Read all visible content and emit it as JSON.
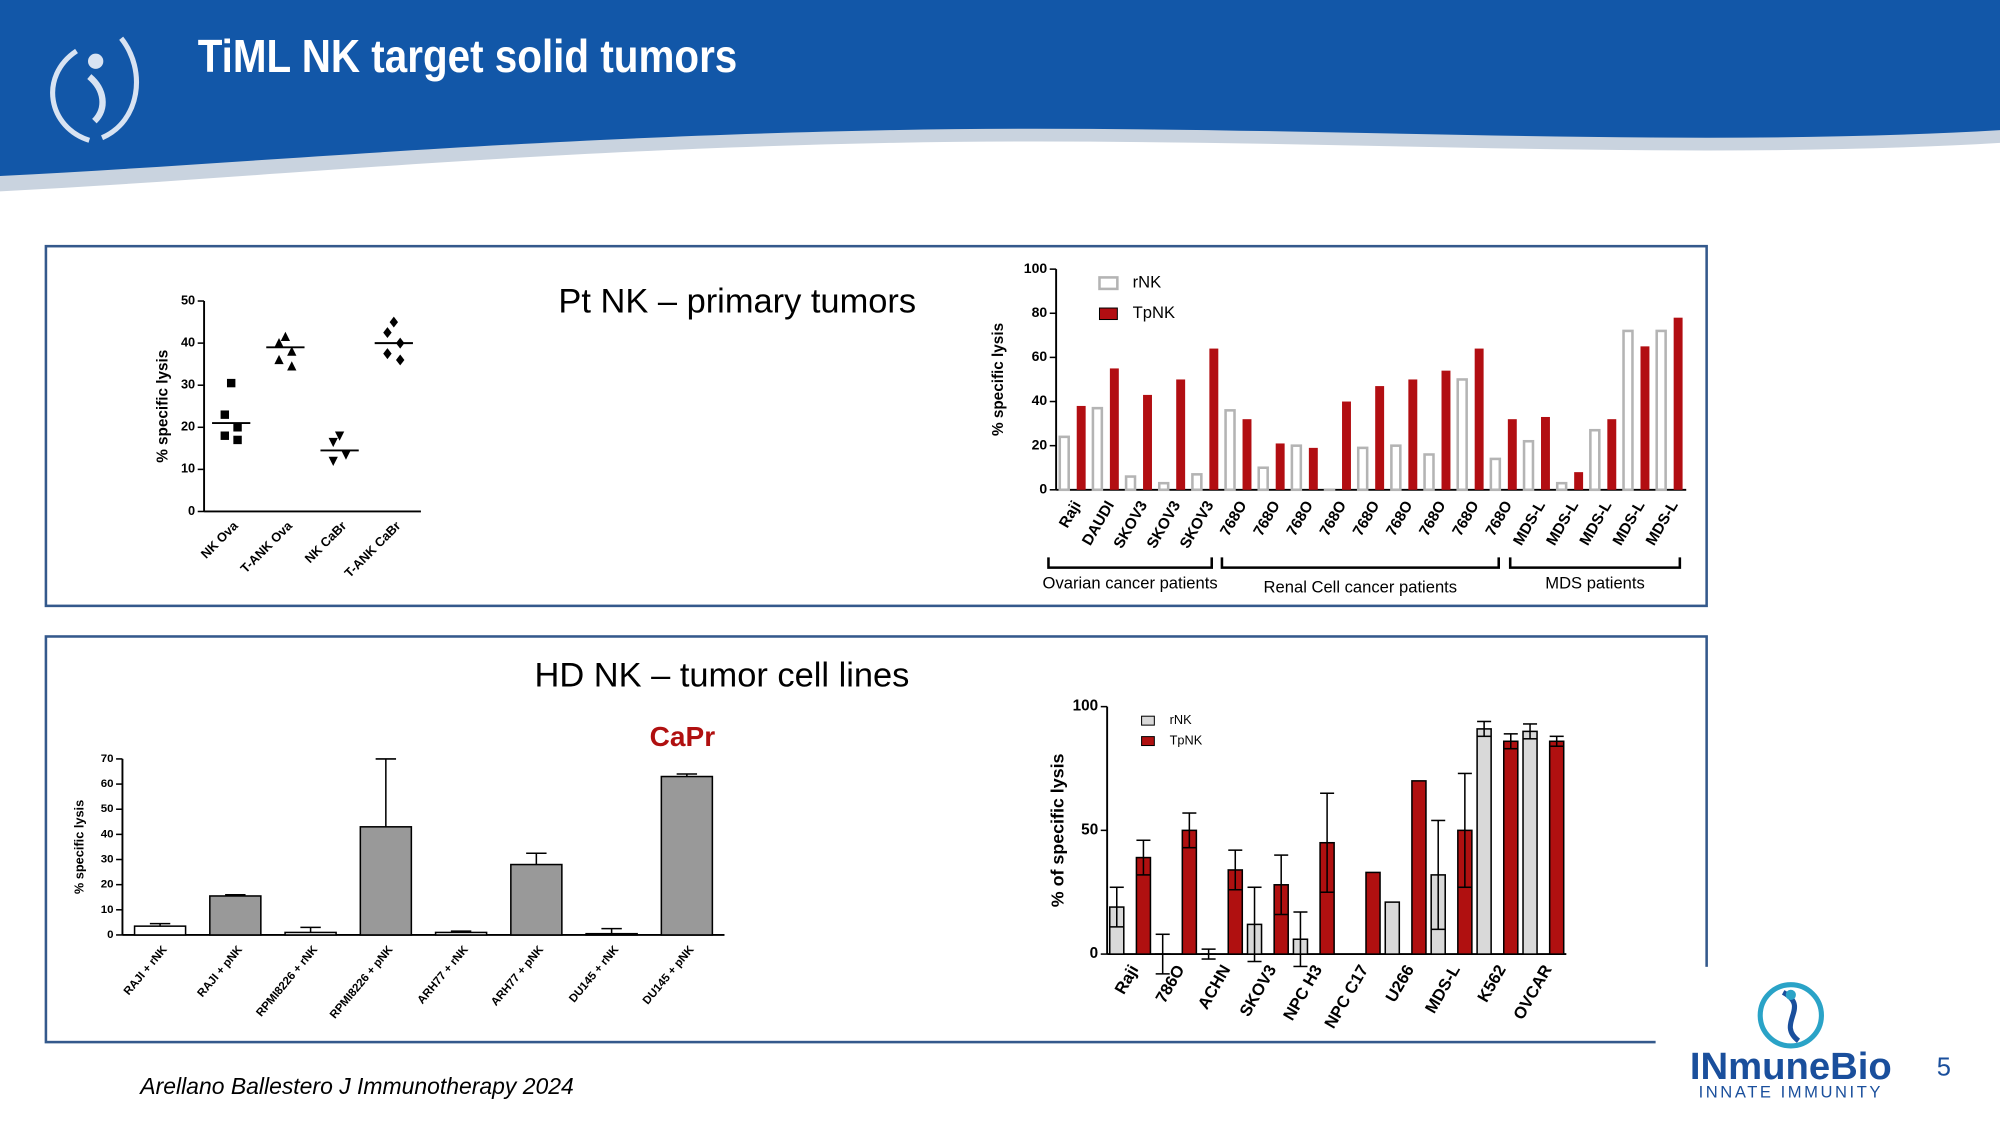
{
  "header": {
    "title": "TiML NK target solid tumors"
  },
  "panels": [
    {
      "title": "Pt NK – primary tumors"
    },
    {
      "title": "HD NK – tumor cell lines"
    }
  ],
  "footer": {
    "citation": "Arellano Ballestero J Immunotherapy 2024",
    "page_number": "5"
  },
  "logo": {
    "name": "INmuneBio",
    "tagline": "INNATE IMMUNITY"
  },
  "chart_data": [
    {
      "type": "dot",
      "ylabel": "% specific lysis",
      "categories": [
        "NK Ova",
        "T-ANK Ova",
        "NK CaBr",
        "T-ANK CaBr"
      ],
      "points": [
        [
          30.5,
          23,
          20,
          18,
          17
        ],
        [
          41.5,
          40,
          38,
          36,
          34.5
        ],
        [
          18,
          16.5,
          13.5,
          12
        ],
        [
          45,
          42.5,
          40,
          37.5,
          36
        ]
      ],
      "means": [
        21,
        39,
        14.5,
        40
      ],
      "color": "#000000",
      "ylim": [
        0,
        50
      ],
      "yticks": [
        0,
        10,
        20,
        30,
        40,
        50
      ]
    },
    {
      "type": "bar",
      "ylabel": "% specific lysis",
      "categories": [
        "Raji",
        "DAUDI",
        "SKOV3",
        "SKOV3",
        "SKOV3",
        "768O",
        "768O",
        "768O",
        "768O",
        "768O",
        "768O",
        "768O",
        "768O",
        "768O",
        "MDS-L",
        "MDS-L",
        "MDS-L",
        "MDS-L",
        "MDS-L"
      ],
      "series": [
        {
          "name": "rNK",
          "color": "#b4b4b4",
          "style": "outline",
          "values": [
            24,
            37,
            6,
            3,
            7,
            36,
            10,
            20,
            0,
            19,
            20,
            16,
            50,
            14,
            22,
            3,
            27,
            72,
            72
          ]
        },
        {
          "name": "TpNK",
          "color": "#b20e12",
          "style": "fill",
          "values": [
            38,
            55,
            43,
            50,
            64,
            32,
            21,
            19,
            40,
            47,
            50,
            54,
            64,
            32,
            33,
            8,
            32,
            65,
            78
          ]
        }
      ],
      "ylim": [
        0,
        100
      ],
      "yticks": [
        0,
        20,
        40,
        60,
        80,
        100
      ],
      "annotations": [
        "Ovarian cancer patients",
        "Renal Cell cancer patients",
        "MDS patients"
      ]
    },
    {
      "type": "bar",
      "ylabel": "% specific lysis",
      "annotation": "CaPr",
      "categories": [
        "RAJI + rNK",
        "RAJI + pNK",
        "RPMI8226 + rNK",
        "RPMI8226 + pNK",
        "ARH77 + rNK",
        "ARH77 + pNK",
        "DU145 + rNK",
        "DU145 + pNK"
      ],
      "series": [
        {
          "colors": [
            "#ffffff",
            "#999999",
            "#ffffff",
            "#999999",
            "#ffffff",
            "#999999",
            "#ffffff",
            "#999999"
          ],
          "values": [
            3.5,
            15.5,
            1,
            43,
            1,
            28,
            0.5,
            63
          ],
          "errors": [
            1,
            0.5,
            2,
            27,
            0.5,
            4.5,
            2,
            1
          ]
        }
      ],
      "error_bars": "upper",
      "ylim": [
        0,
        70
      ],
      "yticks": [
        0,
        10,
        20,
        30,
        40,
        50,
        60,
        70
      ]
    },
    {
      "type": "bar",
      "ylabel": "% of specific lysis",
      "categories": [
        "Raji",
        "786O",
        "ACHN",
        "SKOV3",
        "NPC H3",
        "NPC C17",
        "U266",
        "MDS-L",
        "K562",
        "OVCAR"
      ],
      "series": [
        {
          "name": "rNK",
          "color": "#d9d9d9",
          "style": "fill",
          "values": [
            19,
            0,
            0,
            12,
            6,
            null,
            21,
            32,
            91,
            90
          ],
          "errors": [
            8,
            8,
            2,
            15,
            11,
            null,
            null,
            22,
            3,
            3
          ]
        },
        {
          "name": "TpNK",
          "color": "#b01010",
          "style": "fill",
          "values": [
            39,
            50,
            34,
            28,
            45,
            33,
            70,
            50,
            86,
            86
          ],
          "errors": [
            7,
            7,
            8,
            12,
            20,
            null,
            null,
            23,
            3,
            2
          ]
        }
      ],
      "error_bars": "both",
      "ylim": [
        0,
        100
      ],
      "yticks": [
        0,
        50,
        100
      ]
    }
  ]
}
